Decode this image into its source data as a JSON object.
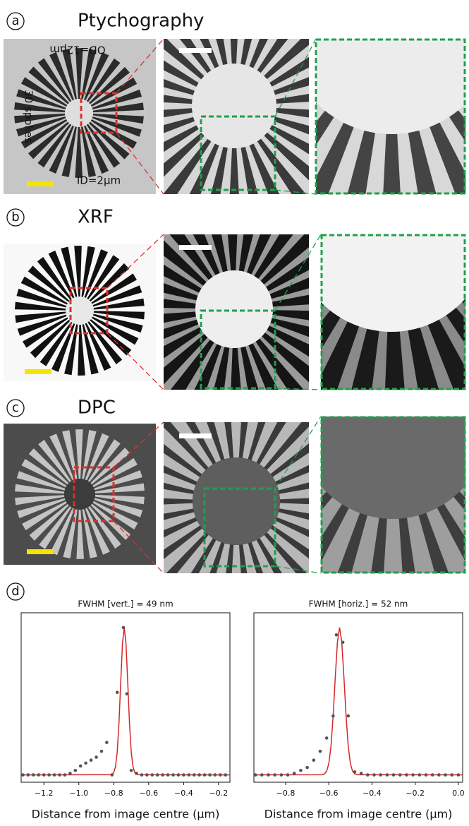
{
  "figure": {
    "panels": [
      {
        "label": "a",
        "title": "Ptychography",
        "annotations": [
          "OD=12μm",
          "30 spokes",
          "ID=2μm"
        ]
      },
      {
        "label": "b",
        "title": "XRF"
      },
      {
        "label": "c",
        "title": "DPC"
      }
    ],
    "plot_label": "d"
  },
  "chart_data": [
    {
      "type": "scatter",
      "title": "FWHM [vert.] = 49 nm",
      "xlabel": "Distance from image centre (μm)",
      "xlim": [
        -1.33,
        -0.135
      ],
      "ylim": [
        -0.05,
        1.1
      ],
      "xticks": [
        {
          "value": -1.2,
          "label": "−1.2"
        },
        {
          "value": -1.0,
          "label": "−1.0"
        },
        {
          "value": -0.8,
          "label": "−0.8"
        },
        {
          "value": -0.6,
          "label": "−0.6"
        },
        {
          "value": -0.4,
          "label": "−0.4"
        },
        {
          "value": -0.2,
          "label": "−0.2"
        }
      ],
      "series": [
        {
          "style": "points",
          "color": "#555555",
          "x": [
            -1.32,
            -1.29,
            -1.26,
            -1.23,
            -1.2,
            -1.17,
            -1.14,
            -1.11,
            -1.08,
            -1.05,
            -1.02,
            -0.99,
            -0.96,
            -0.93,
            -0.9,
            -0.87,
            -0.84,
            -0.81,
            -0.78,
            -0.745,
            -0.725,
            -0.7,
            -0.67,
            -0.64,
            -0.61,
            -0.58,
            -0.55,
            -0.52,
            -0.49,
            -0.46,
            -0.43,
            -0.4,
            -0.37,
            -0.34,
            -0.31,
            -0.28,
            -0.25,
            -0.22,
            -0.19,
            -0.16
          ],
          "values": [
            0,
            0,
            0,
            0,
            0,
            0,
            0,
            0,
            0,
            0.01,
            0.03,
            0.06,
            0.08,
            0.1,
            0.12,
            0.16,
            0.22,
            0,
            0.56,
            1.0,
            0.55,
            0.03,
            0.01,
            0,
            0,
            0,
            0,
            0,
            0,
            0,
            0,
            0,
            0,
            0,
            0,
            0,
            0,
            0,
            0,
            0
          ]
        },
        {
          "style": "line",
          "color": "#d62728",
          "x": [
            -1.33,
            -0.82,
            -0.81,
            -0.8,
            -0.79,
            -0.78,
            -0.77,
            -0.76,
            -0.75,
            -0.74,
            -0.73,
            -0.72,
            -0.71,
            -0.7,
            -0.69,
            -0.68,
            -0.67,
            -0.66,
            -0.135
          ],
          "values": [
            0,
            0.001,
            0.004,
            0.016,
            0.056,
            0.157,
            0.354,
            0.63,
            0.891,
            1.0,
            0.891,
            0.63,
            0.354,
            0.157,
            0.056,
            0.016,
            0.004,
            0.001,
            0
          ]
        }
      ]
    },
    {
      "type": "scatter",
      "title": "FWHM [horiz.] = 52 nm",
      "xlabel": "Distance from image centre (μm)",
      "xlim": [
        -0.947,
        0.02
      ],
      "ylim": [
        -0.05,
        1.1
      ],
      "xticks": [
        {
          "value": -0.8,
          "label": "−0.8"
        },
        {
          "value": -0.6,
          "label": "−0.6"
        },
        {
          "value": -0.4,
          "label": "−0.4"
        },
        {
          "value": -0.2,
          "label": "−0.2"
        },
        {
          "value": 0,
          "label": "0.0"
        }
      ],
      "series": [
        {
          "style": "points",
          "color": "#555555",
          "x": [
            -0.94,
            -0.91,
            -0.88,
            -0.85,
            -0.82,
            -0.79,
            -0.76,
            -0.73,
            -0.7,
            -0.67,
            -0.64,
            -0.61,
            -0.58,
            -0.565,
            -0.535,
            -0.51,
            -0.48,
            -0.45,
            -0.42,
            -0.39,
            -0.36,
            -0.33,
            -0.3,
            -0.27,
            -0.24,
            -0.21,
            -0.18,
            -0.15,
            -0.12,
            -0.09,
            -0.06,
            -0.03,
            0
          ],
          "values": [
            0,
            0,
            0,
            0,
            0,
            0,
            0.01,
            0.03,
            0.05,
            0.1,
            0.16,
            0.25,
            0.4,
            0.95,
            0.9,
            0.4,
            0.02,
            0.01,
            0,
            0,
            0,
            0,
            0,
            0,
            0,
            0,
            0,
            0,
            0,
            0,
            0,
            0,
            0
          ]
        },
        {
          "style": "line",
          "color": "#d62728",
          "x": [
            -0.947,
            -0.63,
            -0.62,
            -0.61,
            -0.6,
            -0.59,
            -0.58,
            -0.57,
            -0.56,
            -0.55,
            -0.54,
            -0.53,
            -0.52,
            -0.51,
            -0.5,
            -0.49,
            -0.48,
            -0.47,
            0.02
          ],
          "values": [
            0,
            0.001,
            0.007,
            0.025,
            0.077,
            0.194,
            0.398,
            0.664,
            0.903,
            1.0,
            0.903,
            0.664,
            0.398,
            0.194,
            0.077,
            0.025,
            0.007,
            0.001,
            0
          ]
        }
      ]
    }
  ]
}
